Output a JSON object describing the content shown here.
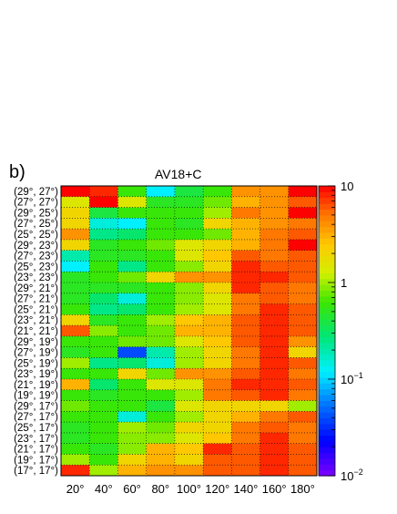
{
  "panel_label": "b)",
  "chart_data": {
    "type": "heatmap",
    "title": "AV18+C",
    "xlabel": "",
    "ylabel": "",
    "x_categories": [
      "20°",
      "40°",
      "60°",
      "80°",
      "100°",
      "120°",
      "140°",
      "160°",
      "180°"
    ],
    "y_categories": [
      "(29°, 27°)",
      "(27°, 27°)",
      "(29°, 25°)",
      "(27°, 25°)",
      "(25°, 25°)",
      "(29°, 23°)",
      "(27°, 23°)",
      "(25°, 23°)",
      "(23°, 23°)",
      "(29°, 21°)",
      "(27°, 21°)",
      "(25°, 21°)",
      "(23°, 21°)",
      "(21°, 21°)",
      "(29°, 19°)",
      "(27°, 19°)",
      "(25°, 19°)",
      "(23°, 19°)",
      "(21°, 19°)",
      "(19°, 19°)",
      "(29°, 17°)",
      "(27°, 17°)",
      "(25°, 17°)",
      "(23°, 17°)",
      "(21°, 17°)",
      "(19°, 17°)",
      "(17°, 17°)"
    ],
    "colorscale": {
      "type": "log",
      "min": 0.01,
      "max": 10,
      "tick_labels": [
        "10",
        "1",
        "10^-1",
        "10^-2"
      ],
      "tick_values": [
        10,
        1,
        0.1,
        0.01
      ]
    },
    "values": [
      [
        10,
        8,
        0.6,
        0.12,
        0.4,
        0.6,
        4,
        4,
        10
      ],
      [
        1.5,
        10,
        1.5,
        0.5,
        0.5,
        0.8,
        3,
        4,
        6
      ],
      [
        2,
        0.4,
        0.6,
        0.6,
        0.6,
        1,
        5,
        4,
        10
      ],
      [
        2,
        0.15,
        0.12,
        0.6,
        0.5,
        2,
        3,
        4,
        5
      ],
      [
        4,
        0.25,
        0.3,
        0.6,
        0.6,
        0.8,
        3,
        5,
        6
      ],
      [
        2,
        0.5,
        0.6,
        0.8,
        1.5,
        2,
        3,
        5,
        10
      ],
      [
        0.2,
        0.5,
        0.5,
        0.6,
        1.5,
        2.5,
        6,
        5,
        6
      ],
      [
        0.12,
        0.6,
        0.25,
        0.6,
        0.9,
        2,
        8,
        6,
        6
      ],
      [
        0.5,
        0.6,
        0.8,
        2,
        4,
        4,
        8,
        8,
        6
      ],
      [
        0.5,
        0.5,
        0.5,
        0.6,
        0.9,
        2,
        8,
        6,
        5
      ],
      [
        0.5,
        0.3,
        0.15,
        0.6,
        0.9,
        1.5,
        5,
        6,
        5
      ],
      [
        0.6,
        0.25,
        0.3,
        0.6,
        1,
        1.5,
        5,
        8,
        6
      ],
      [
        2,
        0.5,
        0.6,
        1,
        2.5,
        3,
        6,
        8,
        6
      ],
      [
        6,
        0.9,
        0.6,
        0.8,
        3,
        3,
        6,
        8,
        6
      ],
      [
        0.6,
        0.6,
        0.8,
        0.8,
        1.5,
        2.5,
        6,
        8,
        4
      ],
      [
        0.5,
        0.6,
        0.04,
        0.2,
        1,
        2,
        5,
        8,
        2
      ],
      [
        1,
        0.25,
        0.3,
        0.15,
        1,
        2,
        5,
        8,
        6
      ],
      [
        0.6,
        0.6,
        2,
        0.8,
        4,
        4,
        6,
        8,
        5
      ],
      [
        3,
        0.3,
        0.6,
        1.5,
        1.5,
        5,
        8,
        8,
        6
      ],
      [
        0.6,
        0.5,
        0.6,
        0.6,
        1,
        5,
        6,
        8,
        5
      ],
      [
        0.8,
        0.6,
        0.6,
        0.4,
        1.5,
        2,
        2,
        2,
        1
      ],
      [
        0.6,
        0.6,
        0.15,
        0.6,
        1,
        2,
        3,
        5,
        6
      ],
      [
        0.5,
        0.6,
        1,
        0.8,
        2,
        2,
        5,
        6,
        5
      ],
      [
        0.5,
        0.6,
        0.9,
        0.9,
        1.5,
        2.5,
        5,
        8,
        5
      ],
      [
        0.6,
        0.5,
        0.9,
        3,
        2.5,
        8,
        6,
        8,
        6
      ],
      [
        1,
        0.6,
        2,
        3,
        2,
        6,
        6,
        8,
        6
      ],
      [
        8,
        1,
        3,
        4,
        4,
        6,
        6,
        8,
        6
      ]
    ]
  }
}
